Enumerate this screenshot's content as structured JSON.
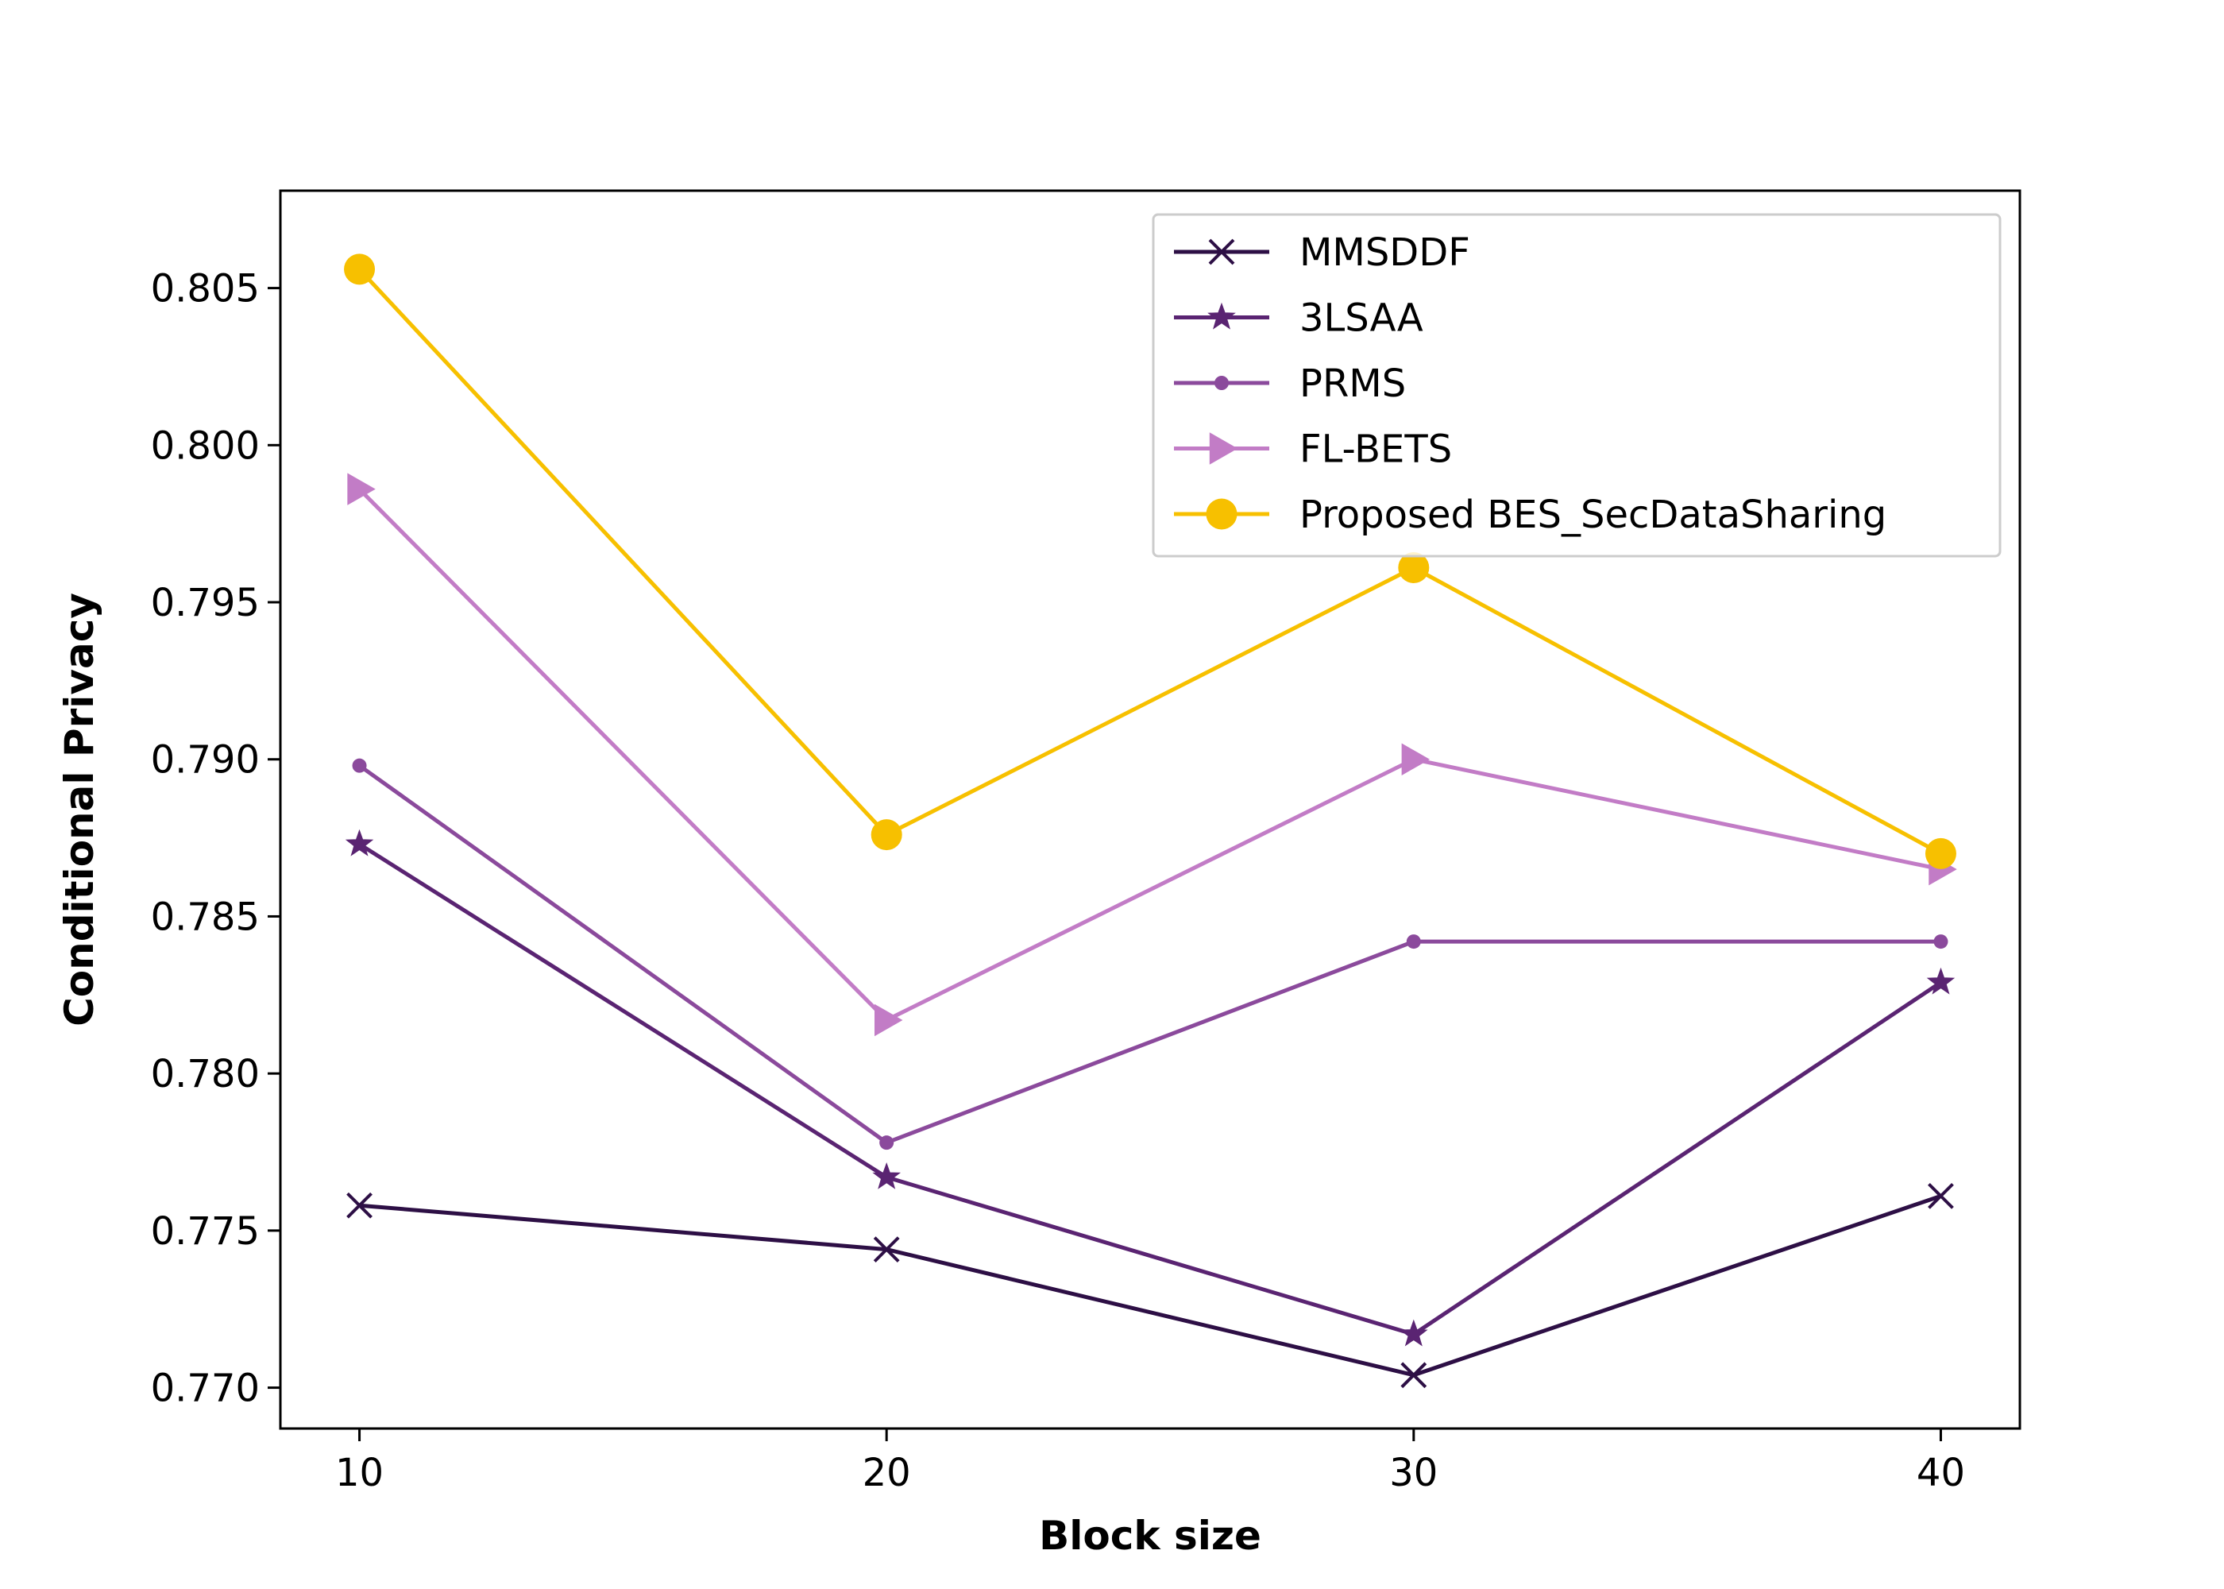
{
  "chart_data": {
    "type": "line",
    "title": "",
    "xlabel": "Block size",
    "ylabel": "Conditional Privacy",
    "x": [
      10,
      20,
      30,
      40
    ],
    "x_ticks": [
      "10",
      "20",
      "30",
      "40"
    ],
    "y_ticks": [
      "0.770",
      "0.775",
      "0.780",
      "0.785",
      "0.790",
      "0.795",
      "0.800",
      "0.805"
    ],
    "xlim": [
      8.5,
      41.5
    ],
    "ylim": [
      0.7687,
      0.8081
    ],
    "grid": false,
    "legend_position": "top-right",
    "series": [
      {
        "name": "MMSDDF",
        "values": [
          0.7758,
          0.7744,
          0.7704,
          0.7761
        ],
        "color": "#2d0f45",
        "marker": "x"
      },
      {
        "name": "3LSAA",
        "values": [
          0.7873,
          0.7767,
          0.7717,
          0.7829
        ],
        "color": "#5a2472",
        "marker": "star"
      },
      {
        "name": "PRMS",
        "values": [
          0.7898,
          0.7778,
          0.7842,
          0.7842
        ],
        "color": "#8b4a9c",
        "marker": "dot"
      },
      {
        "name": "FL-BETS",
        "values": [
          0.7986,
          0.7817,
          0.79,
          0.7865
        ],
        "color": "#c27cc6",
        "marker": "triangle-right"
      },
      {
        "name": "Proposed BES_SecDataSharing",
        "values": [
          0.8056,
          0.7876,
          0.7961,
          0.787
        ],
        "color": "#f7c000",
        "marker": "circle"
      }
    ]
  }
}
